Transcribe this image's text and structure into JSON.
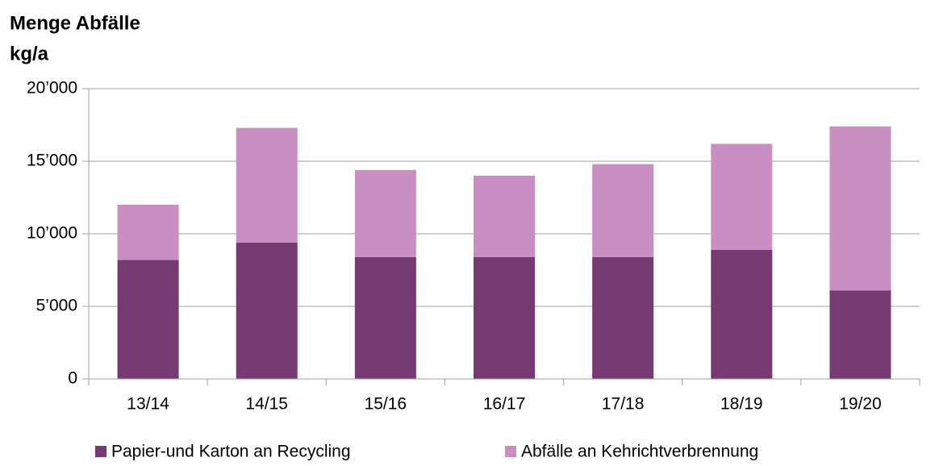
{
  "chart_data": {
    "type": "stacked_bar",
    "title": "Menge Abfälle",
    "y_label": "kg/a",
    "categories": [
      "13/14",
      "14/15",
      "15/16",
      "16/17",
      "17/18",
      "18/19",
      "19/20"
    ],
    "series": [
      {
        "name": "Papier-und Karton an Recycling",
        "color": "#763a72",
        "values": [
          8200,
          9400,
          8400,
          8400,
          8400,
          8900,
          6100
        ]
      },
      {
        "name": "Abfälle an Kehrichtverbrennung",
        "color": "#c98fc2",
        "values": [
          3800,
          7900,
          6000,
          5600,
          6400,
          7300,
          11300
        ]
      }
    ],
    "ylim": [
      0,
      20000
    ],
    "yticks": [
      0,
      {
        "value": 5000,
        "label": "5’000"
      },
      {
        "value": 10000,
        "label": "10’000"
      },
      {
        "value": 15000,
        "label": "15’000"
      },
      {
        "value": 20000,
        "label": "20’000"
      }
    ],
    "grid": true,
    "legend": "bottom"
  }
}
